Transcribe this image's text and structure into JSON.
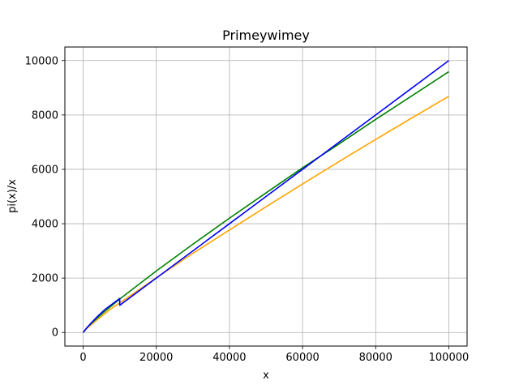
{
  "chart_data": {
    "type": "line",
    "title": "Primeywimey",
    "xlabel": "x",
    "ylabel": "pi(x)/x",
    "xlim": [
      -5000,
      105000
    ],
    "ylim": [
      -500,
      10500
    ],
    "xticks": [
      0,
      20000,
      40000,
      60000,
      80000,
      100000
    ],
    "xtick_labels": [
      "0",
      "20000",
      "40000",
      "60000",
      "80000",
      "100000"
    ],
    "yticks": [
      0,
      2000,
      4000,
      6000,
      8000,
      10000
    ],
    "ytick_labels": [
      "0",
      "2000",
      "4000",
      "6000",
      "8000",
      "10000"
    ],
    "grid": true,
    "legend": "none",
    "series": [
      {
        "color": "#ffa500",
        "x": [
          0,
          1000,
          2000,
          4000,
          6000,
          8000,
          10000,
          20000,
          30000,
          40000,
          50000,
          60000,
          70000,
          80000,
          90000,
          100000
        ],
        "y": [
          0,
          145,
          263,
          487,
          701,
          908,
          1086,
          2007,
          2910,
          3767,
          4621,
          5460,
          6288,
          7100,
          7899,
          8686
        ]
      },
      {
        "color": "#008000",
        "x": [
          0,
          1000,
          2000,
          4000,
          6000,
          8000,
          10000,
          20000,
          30000,
          40000,
          50000,
          60000,
          70000,
          80000,
          90000,
          100000
        ],
        "y": [
          0,
          168,
          303,
          550,
          783,
          1007,
          1229,
          2262,
          3245,
          4203,
          5133,
          6057,
          6935,
          7837,
          8713,
          9592
        ]
      },
      {
        "color": "#0000ff",
        "x": [
          0,
          1000,
          2000,
          4000,
          6000,
          8000,
          10000,
          10001,
          20000,
          30000,
          40000,
          50000,
          60000,
          70000,
          80000,
          90000,
          100000
        ],
        "y": [
          0,
          170,
          320,
          600,
          850,
          1050,
          1250,
          1000,
          2000,
          3000,
          4000,
          5000,
          6000,
          7000,
          8000,
          9000,
          10000
        ]
      }
    ]
  }
}
